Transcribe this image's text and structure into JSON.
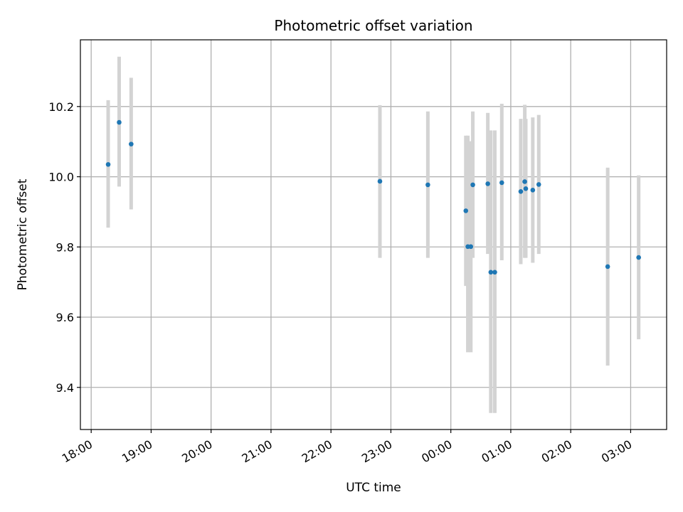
{
  "chart_data": {
    "type": "scatter",
    "title": "Photometric offset variation",
    "xlabel": "UTC time",
    "ylabel": "Photometric offset",
    "x_axis": {
      "unit": "hours since 18:00 UTC",
      "xlim": [
        -0.18,
        9.6
      ],
      "ticks": [
        0,
        1,
        2,
        3,
        4,
        5,
        6,
        7,
        8,
        9
      ],
      "tick_labels": [
        "18:00",
        "19:00",
        "20:00",
        "21:00",
        "22:00",
        "23:00",
        "00:00",
        "01:00",
        "02:00",
        "03:00"
      ]
    },
    "y_axis": {
      "ylim": [
        9.28,
        10.39
      ],
      "ticks": [
        9.4,
        9.6,
        9.8,
        10.0,
        10.2
      ],
      "tick_labels": [
        "9.4",
        "9.6",
        "9.8",
        "10.0",
        "10.2"
      ]
    },
    "grid": true,
    "colors": {
      "point": "#1f77b4",
      "errorbar": "#d3d3d3",
      "grid": "#b0b0b0"
    },
    "points": [
      {
        "time": "18:17",
        "y": 10.035,
        "err_low": 9.855,
        "err_high": 10.218
      },
      {
        "time": "18:28",
        "y": 10.155,
        "err_low": 9.972,
        "err_high": 10.342
      },
      {
        "time": "18:40",
        "y": 10.093,
        "err_low": 9.907,
        "err_high": 10.282
      },
      {
        "time": "22:49",
        "y": 9.987,
        "err_low": 9.769,
        "err_high": 10.204
      },
      {
        "time": "23:37",
        "y": 9.977,
        "err_low": 9.769,
        "err_high": 10.186
      },
      {
        "time": "00:15",
        "y": 9.903,
        "err_low": 9.689,
        "err_high": 10.117
      },
      {
        "time": "00:17",
        "y": 9.801,
        "err_low": 9.5,
        "err_high": 10.117
      },
      {
        "time": "00:20",
        "y": 9.801,
        "err_low": 9.5,
        "err_high": 10.101
      },
      {
        "time": "00:22",
        "y": 9.977,
        "err_low": 9.769,
        "err_high": 10.186
      },
      {
        "time": "00:37",
        "y": 9.98,
        "err_low": 9.78,
        "err_high": 10.182
      },
      {
        "time": "00:40",
        "y": 9.728,
        "err_low": 9.327,
        "err_high": 10.132
      },
      {
        "time": "00:44",
        "y": 9.728,
        "err_low": 9.327,
        "err_high": 10.132
      },
      {
        "time": "00:51",
        "y": 9.983,
        "err_low": 9.762,
        "err_high": 10.208
      },
      {
        "time": "01:10",
        "y": 9.958,
        "err_low": 9.751,
        "err_high": 10.165
      },
      {
        "time": "01:14",
        "y": 9.986,
        "err_low": 9.769,
        "err_high": 10.205
      },
      {
        "time": "01:15",
        "y": 9.966,
        "err_low": 9.769,
        "err_high": 10.165
      },
      {
        "time": "01:22",
        "y": 9.962,
        "err_low": 9.755,
        "err_high": 10.169
      },
      {
        "time": "01:28",
        "y": 9.978,
        "err_low": 9.78,
        "err_high": 10.176
      },
      {
        "time": "02:37",
        "y": 9.744,
        "err_low": 9.462,
        "err_high": 10.026
      },
      {
        "time": "03:08",
        "y": 9.77,
        "err_low": 9.537,
        "err_high": 10.004
      }
    ]
  }
}
